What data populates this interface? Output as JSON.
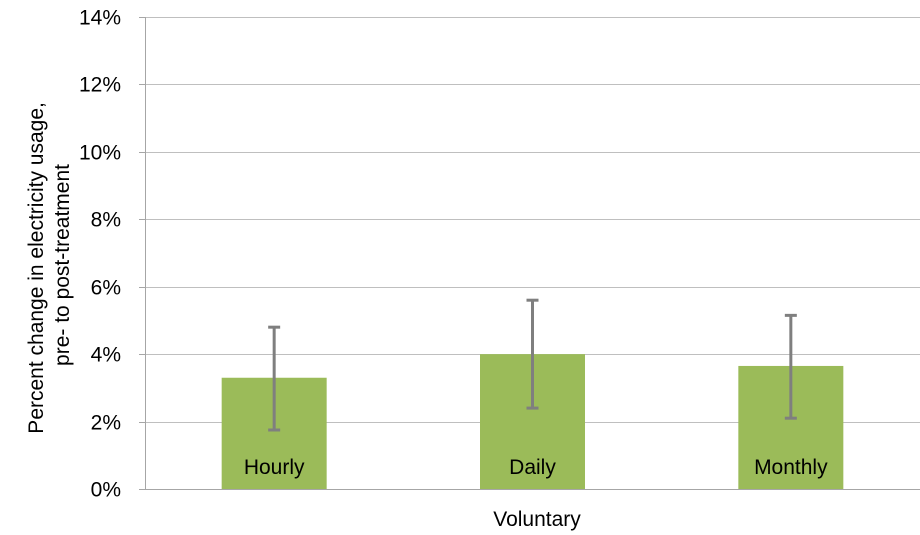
{
  "chart_data": {
    "type": "bar",
    "title": "",
    "xlabel": "Voluntary",
    "ylabel_lines": [
      "Percent change in electricity usage,",
      "pre- to post-treatment"
    ],
    "categories": [
      "Hourly",
      "Daily",
      "Monthly"
    ],
    "series": [
      {
        "values": [
          3.3,
          4.0,
          3.65
        ],
        "error_low": [
          1.75,
          2.4,
          2.1
        ],
        "error_high": [
          4.8,
          5.6,
          5.15
        ]
      }
    ],
    "y_unit": "%",
    "ylim": [
      0,
      14
    ],
    "yticks": [
      0,
      2,
      4,
      6,
      8,
      10,
      12,
      14
    ],
    "ytick_labels": [
      "0%",
      "2%",
      "4%",
      "6%",
      "8%",
      "10%",
      "12%",
      "14%"
    ],
    "grid": true,
    "legend": "none",
    "bar_labels_inside": true
  },
  "colors": {
    "bar": "#9bbb59",
    "error_bar": "#7f7f7f",
    "grid": "#bfbfbf",
    "axis": "#a6a6a6"
  }
}
